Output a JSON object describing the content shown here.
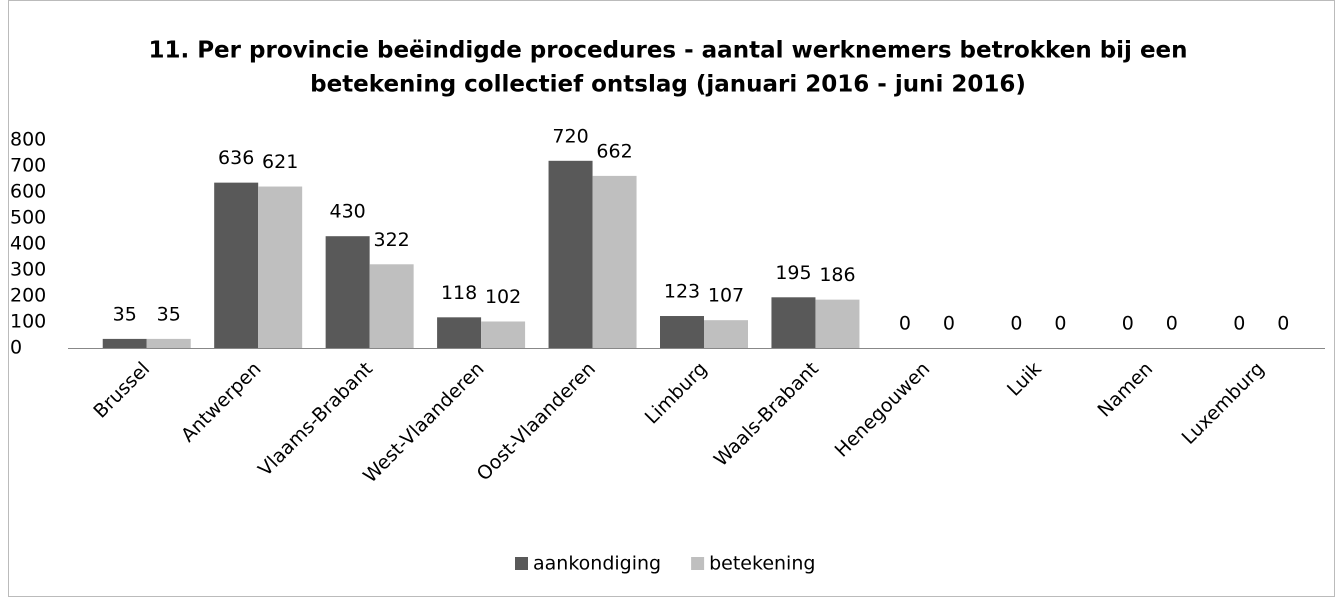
{
  "chart_data": {
    "type": "bar",
    "title": [
      "11. Per provincie beëindigde procedures - aantal werknemers betrokken bij een",
      "betekening collectief ontslag  (januari 2016 - juni 2016)"
    ],
    "categories": [
      "Brussel",
      "Antwerpen",
      "Vlaams-Brabant",
      "West-Vlaanderen",
      "Oost-Vlaanderen",
      "Limburg",
      "Waals-Brabant",
      "Henegouwen",
      "Luik",
      "Namen",
      "Luxemburg"
    ],
    "series": [
      {
        "name": "aankondiging",
        "color": "#595959",
        "values": [
          35,
          636,
          430,
          118,
          720,
          123,
          195,
          0,
          0,
          0,
          0
        ]
      },
      {
        "name": "betekening",
        "color": "#bfbfbf",
        "values": [
          35,
          621,
          322,
          102,
          662,
          107,
          186,
          0,
          0,
          0,
          0
        ]
      }
    ],
    "ylim": [
      0,
      800
    ],
    "yticks": [
      0,
      100,
      200,
      300,
      400,
      500,
      600,
      700,
      800
    ],
    "grid": false,
    "legend": "bottom"
  }
}
